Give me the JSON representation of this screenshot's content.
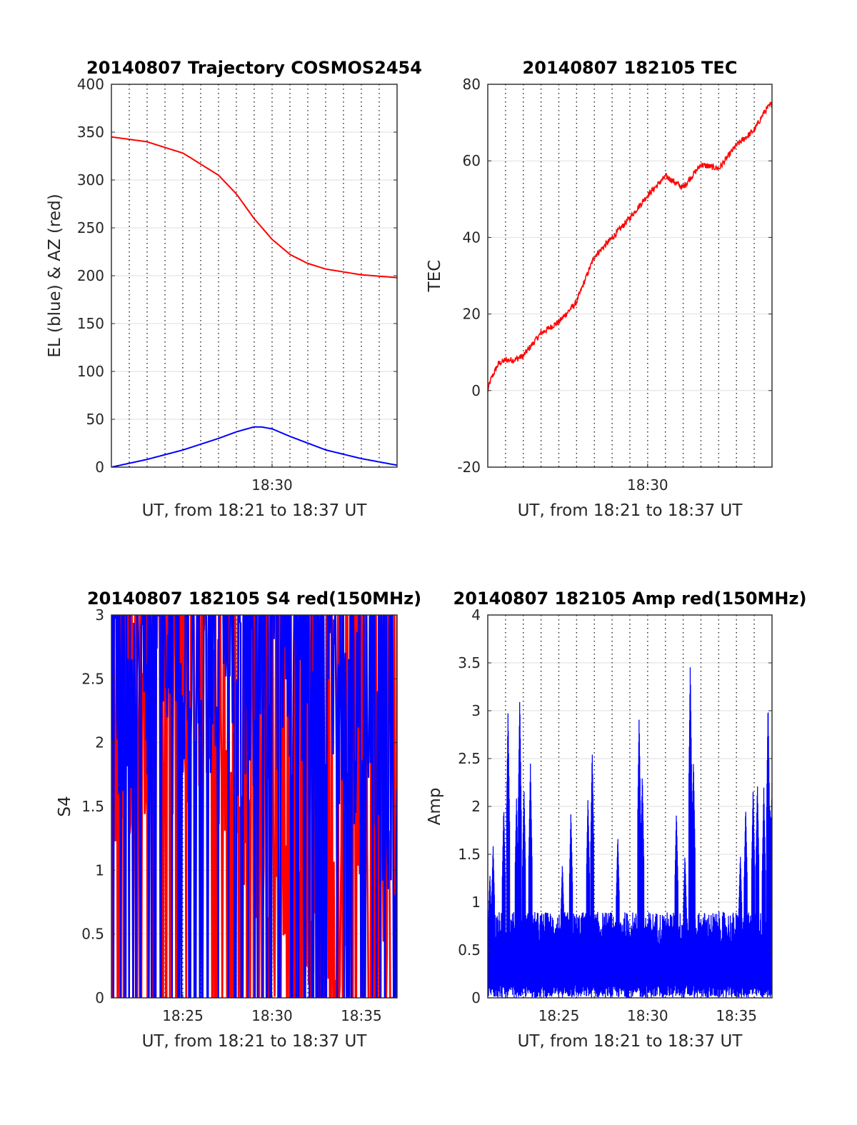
{
  "figure_title": "",
  "chart_data": [
    {
      "type": "line",
      "title": "20140807 Trajectory COSMOS2454",
      "xlabel": "UT, from 18:21 to 18:37 UT",
      "ylabel": "EL (blue) & AZ (red)",
      "xlim": [
        18.35,
        18.6167
      ],
      "ylim": [
        0,
        400
      ],
      "x_ticks": [
        {
          "value": 18.5,
          "label": "18:30"
        }
      ],
      "y_ticks": [
        0,
        50,
        100,
        150,
        200,
        250,
        300,
        350,
        400
      ],
      "grid": true,
      "series": [
        {
          "color": "#0000ff",
          "x": [
            18.35,
            18.383,
            18.417,
            18.45,
            18.467,
            18.483,
            18.49,
            18.5,
            18.517,
            18.55,
            18.583,
            18.6167
          ],
          "y": [
            0,
            8,
            18,
            30,
            37,
            42,
            42,
            40,
            32,
            18,
            9,
            2
          ]
        },
        {
          "color": "#ff0000",
          "x": [
            18.35,
            18.383,
            18.417,
            18.45,
            18.467,
            18.483,
            18.5,
            18.517,
            18.533,
            18.55,
            18.583,
            18.6167
          ],
          "y": [
            345,
            340,
            328,
            305,
            285,
            260,
            238,
            222,
            213,
            207,
            201,
            198
          ]
        }
      ]
    },
    {
      "type": "line",
      "title": "20140807 182105 TEC",
      "xlabel": "UT, from 18:21 to 18:37 UT",
      "ylabel": "TEC",
      "xlim": [
        18.35,
        18.6167
      ],
      "ylim": [
        -20,
        80
      ],
      "x_ticks": [
        {
          "value": 18.5,
          "label": "18:30"
        }
      ],
      "y_ticks": [
        -20,
        0,
        20,
        40,
        60,
        80
      ],
      "grid": true,
      "series": [
        {
          "color": "#ff0000",
          "x": [
            18.35,
            18.353,
            18.36,
            18.367,
            18.375,
            18.383,
            18.4,
            18.417,
            18.433,
            18.44,
            18.45,
            18.467,
            18.483,
            18.5,
            18.517,
            18.533,
            18.55,
            18.567,
            18.583,
            18.6,
            18.61,
            18.6167
          ],
          "y": [
            0,
            3,
            7,
            8,
            8,
            9,
            15,
            18,
            23,
            28,
            35,
            40,
            45,
            51,
            56,
            53,
            59,
            58,
            64,
            68,
            73,
            75
          ]
        }
      ]
    },
    {
      "type": "line",
      "title": "20140807 182105 S4 red(150MHz)",
      "xlabel": "UT, from 18:21 to 18:37 UT",
      "ylabel": "S4",
      "xlim": [
        18.35,
        18.6167
      ],
      "ylim": [
        0,
        3
      ],
      "x_ticks": [
        {
          "value": 18.4167,
          "label": "18:25"
        },
        {
          "value": 18.5,
          "label": "18:30"
        },
        {
          "value": 18.5833,
          "label": "18:35"
        }
      ],
      "y_ticks": [
        0,
        0.5,
        1,
        1.5,
        2,
        2.5,
        3
      ],
      "grid": true,
      "series": [
        {
          "color": "#ff0000",
          "x": [
            18.35,
            18.38,
            18.41,
            18.44,
            18.47,
            18.49,
            18.51,
            18.53,
            18.55,
            18.57,
            18.59,
            18.6167
          ],
          "y": [
            1.8,
            2.2,
            1.9,
            2.5,
            1.2,
            0.8,
            0.6,
            0.5,
            0.7,
            0.4,
            0.6,
            0.5
          ]
        },
        {
          "color": "#0000ff",
          "x": [
            18.35,
            18.38,
            18.41,
            18.44,
            18.47,
            18.49,
            18.51,
            18.53,
            18.55,
            18.57,
            18.59,
            18.6167
          ],
          "y": [
            2.2,
            2.5,
            2.6,
            2.4,
            2.2,
            2.5,
            2.4,
            2.6,
            2.3,
            2.2,
            2.0,
            1.3
          ]
        }
      ]
    },
    {
      "type": "line",
      "title": "20140807 182105 Amp red(150MHz)",
      "xlabel": "UT, from 18:21 to 18:37 UT",
      "ylabel": "Amp",
      "xlim": [
        18.35,
        18.6167
      ],
      "ylim": [
        0,
        4
      ],
      "x_ticks": [
        {
          "value": 18.4167,
          "label": "18:25"
        },
        {
          "value": 18.5,
          "label": "18:30"
        },
        {
          "value": 18.5833,
          "label": "18:35"
        }
      ],
      "y_ticks": [
        0,
        0.5,
        1,
        1.5,
        2,
        2.5,
        3,
        3.5,
        4
      ],
      "grid": true,
      "series": [
        {
          "color": "#0000ff",
          "x": [
            18.352,
            18.355,
            18.365,
            18.369,
            18.377,
            18.38,
            18.384,
            18.39,
            18.39,
            18.42,
            18.428,
            18.444,
            18.448,
            18.472,
            18.492,
            18.495,
            18.527,
            18.535,
            18.54,
            18.543,
            18.587,
            18.592,
            18.599,
            18.603,
            18.609,
            18.613,
            18.615,
            18.6167
          ],
          "y": [
            1.3,
            1.6,
            2.0,
            3.0,
            2.1,
            3.15,
            2.2,
            2.45,
            0.9,
            1.4,
            1.95,
            2.1,
            2.6,
            1.7,
            2.95,
            2.35,
            1.95,
            1.5,
            3.5,
            2.5,
            1.5,
            2.0,
            2.2,
            2.25,
            2.2,
            3.1,
            2.0,
            2.25
          ]
        }
      ]
    }
  ]
}
